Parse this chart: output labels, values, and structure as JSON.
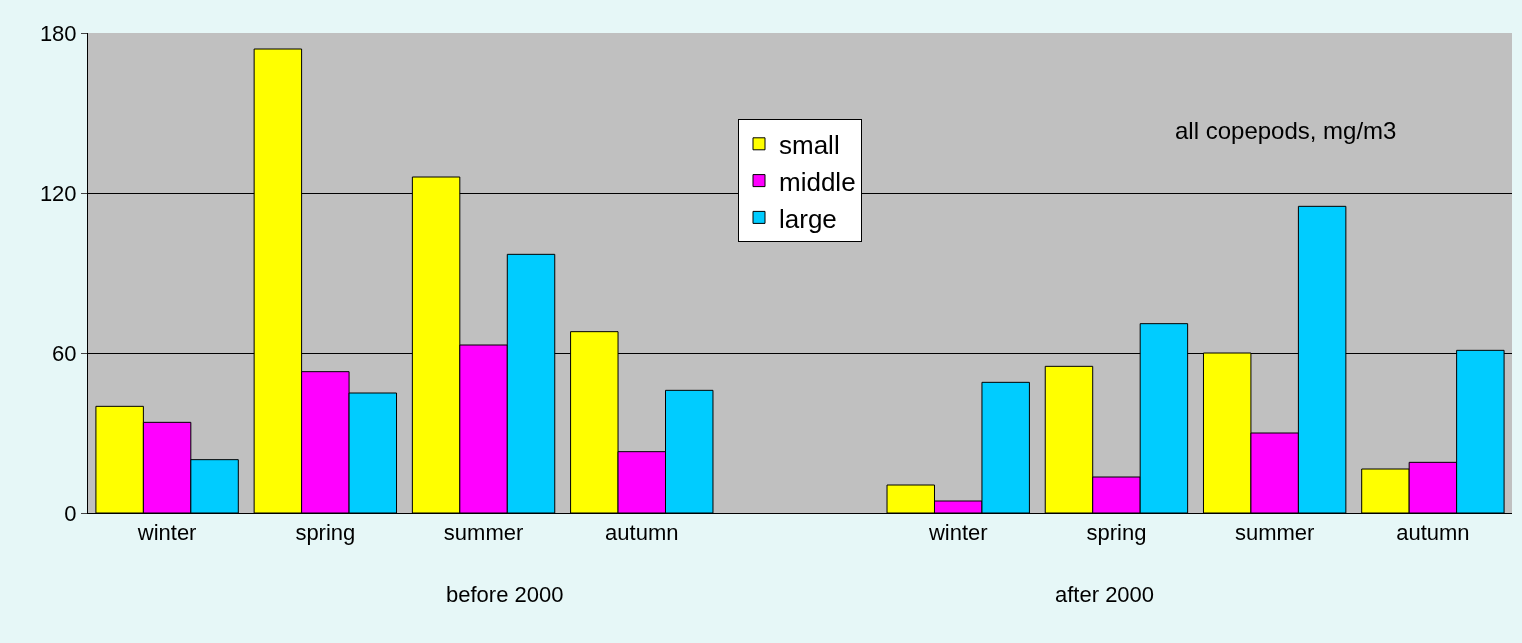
{
  "chart_data": {
    "type": "bar",
    "title": "all copepods, mg/m3",
    "categories": [
      "winter",
      "spring",
      "summer",
      "autumn",
      null,
      "winter",
      "spring",
      "summer",
      "autumn"
    ],
    "series": [
      {
        "name": "small",
        "color": "#ffff00",
        "values": [
          40,
          174,
          126,
          68,
          null,
          10.5,
          55,
          60,
          16.5
        ]
      },
      {
        "name": "middle",
        "color": "#ff00ff",
        "values": [
          34,
          53,
          63,
          23,
          null,
          4.5,
          13.5,
          30,
          19
        ]
      },
      {
        "name": "large",
        "color": "#00ccff",
        "values": [
          20,
          45,
          97,
          46,
          null,
          49,
          71,
          115,
          61
        ]
      }
    ],
    "ylim": [
      0,
      180
    ],
    "yticks": [
      0,
      60,
      120,
      180
    ],
    "grid": "y",
    "legend": "top",
    "annotations": [
      "before 2000",
      "after 2000"
    ]
  }
}
